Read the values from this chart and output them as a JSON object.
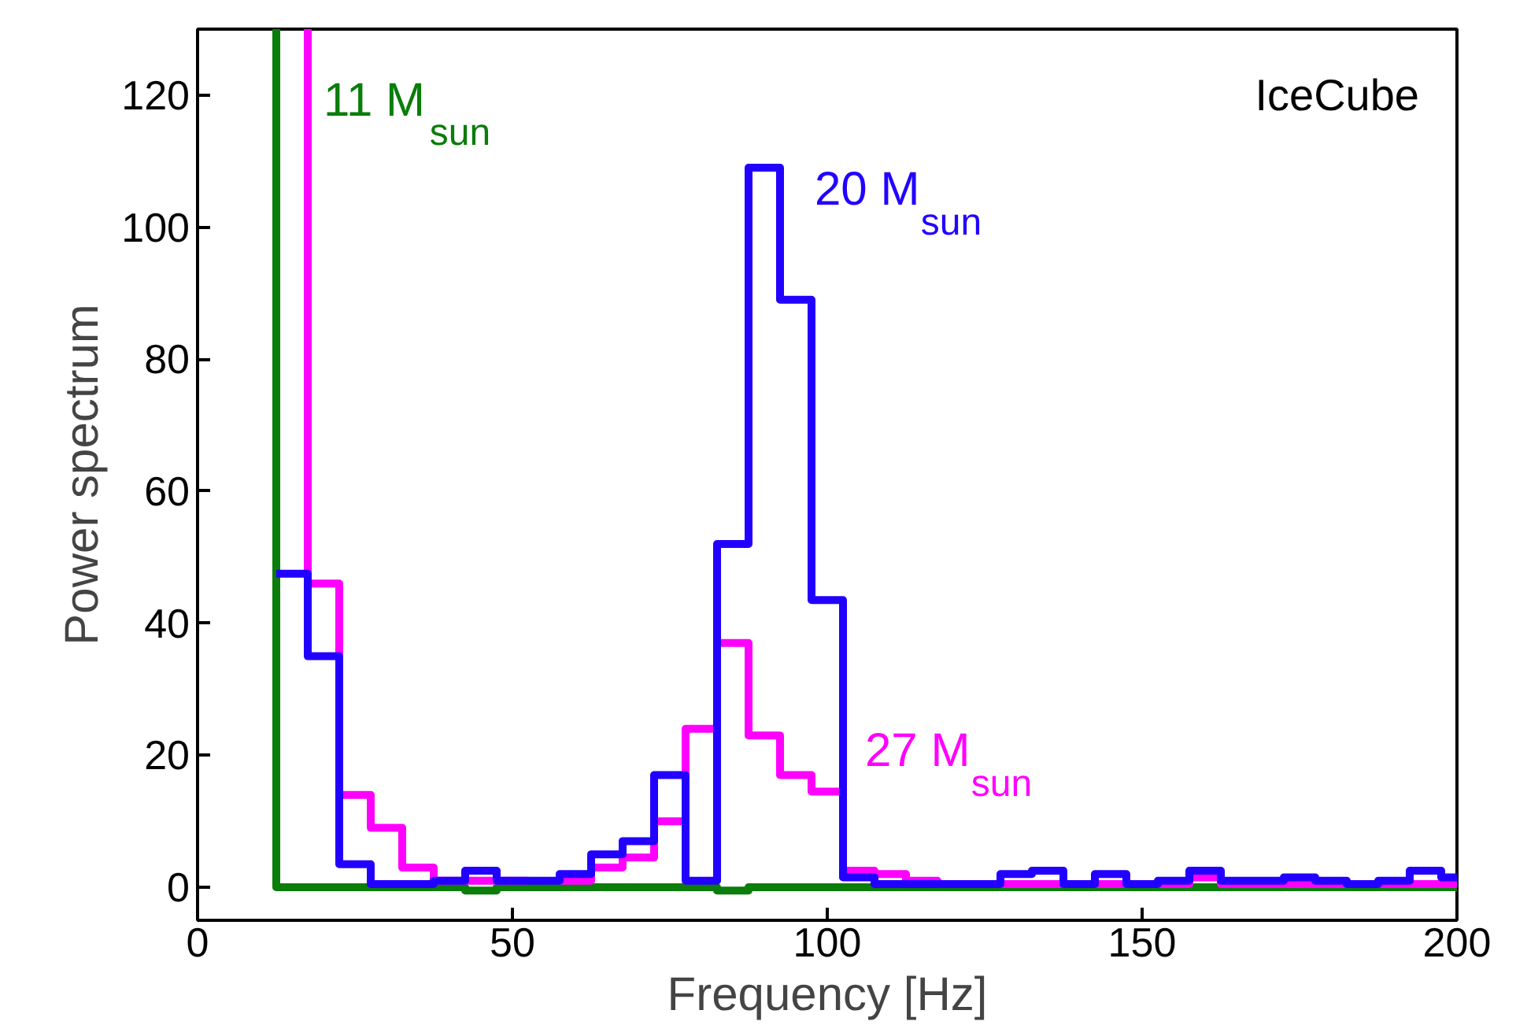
{
  "chart_data": {
    "type": "step",
    "xlabel": "Frequency [Hz]",
    "ylabel": "Power spectrum",
    "x": [
      12.5,
      17.5,
      22.5,
      27.5,
      32.5,
      37.5,
      42.5,
      47.5,
      52.5,
      57.5,
      62.5,
      67.5,
      72.5,
      77.5,
      82.5,
      87.5,
      92.5,
      97.5,
      102.5,
      107.5,
      112.5,
      117.5,
      122.5,
      127.5,
      132.5,
      137.5,
      142.5,
      147.5,
      152.5,
      157.5,
      162.5,
      167.5,
      172.5,
      177.5,
      182.5,
      187.5,
      192.5,
      197.5
    ],
    "series": [
      {
        "name": "11 M$_{sun}$",
        "color": "#0a7d0a",
        "x": [
          12.5,
          12.5,
          17.5,
          22.5,
          27.5,
          32.5,
          37.5,
          42.5,
          47.5,
          52.5,
          57.5,
          62.5,
          67.5,
          72.5,
          77.5,
          82.5,
          87.5,
          92.5,
          97.5,
          102.5,
          107.5,
          112.5,
          117.5,
          122.5,
          127.5,
          132.5,
          137.5,
          142.5,
          147.5,
          152.5,
          157.5,
          162.5,
          167.5,
          172.5,
          177.5,
          182.5,
          187.5,
          192.5,
          197.5
        ],
        "values": [
          130,
          0,
          0,
          0,
          0,
          0,
          0,
          -0.5,
          0,
          0,
          0,
          0,
          0,
          0,
          0,
          -0.5,
          0,
          0,
          0,
          0,
          0,
          0,
          0,
          0,
          0,
          0,
          0,
          0,
          0,
          0,
          0,
          0,
          0,
          0,
          0,
          0,
          0,
          0,
          0
        ]
      },
      {
        "name": "27 M$_{sun}$",
        "color": "#ff00ff",
        "x": [
          17.5,
          17.5,
          22.5,
          27.5,
          32.5,
          37.5,
          42.5,
          47.5,
          52.5,
          57.5,
          62.5,
          67.5,
          72.5,
          77.5,
          82.5,
          87.5,
          92.5,
          97.5,
          102.5,
          107.5,
          112.5,
          117.5,
          122.5,
          127.5,
          132.5,
          137.5,
          142.5,
          147.5,
          152.5,
          157.5,
          162.5,
          167.5,
          172.5,
          177.5,
          182.5,
          187.5,
          192.5,
          197.5
        ],
        "values": [
          130,
          46,
          14,
          9,
          3,
          1,
          1,
          1,
          null,
          1,
          3,
          4.5,
          10,
          24,
          37,
          23,
          17,
          14.5,
          2.5,
          2,
          1,
          0.5,
          null,
          0.5,
          0.5,
          0.5,
          0.5,
          0.5,
          0.5,
          1.5,
          0.5,
          0.5,
          0.5,
          0.5,
          0.5,
          0.5,
          0.5,
          0.5
        ]
      },
      {
        "name": "20 M$_{sun}$",
        "color": "#2200ff",
        "values": [
          47.5,
          35,
          3.5,
          0.5,
          0.5,
          1,
          2.5,
          1,
          1,
          2,
          5,
          7,
          17,
          1,
          52,
          109,
          89,
          43.5,
          1.5,
          0.5,
          0.5,
          0.5,
          0.5,
          2,
          2.5,
          0.5,
          2,
          0.5,
          1,
          2.5,
          1,
          1,
          1.5,
          1,
          0.5,
          1,
          2.5,
          1.5
        ]
      }
    ],
    "annotations": [
      "IceCube"
    ],
    "xlim": [
      0,
      200
    ],
    "ylim": [
      -5,
      130
    ],
    "xticks": [
      0,
      50,
      100,
      150,
      200
    ],
    "yticks": [
      0,
      20,
      40,
      60,
      80,
      100,
      120
    ],
    "grid": false,
    "legend": false
  }
}
